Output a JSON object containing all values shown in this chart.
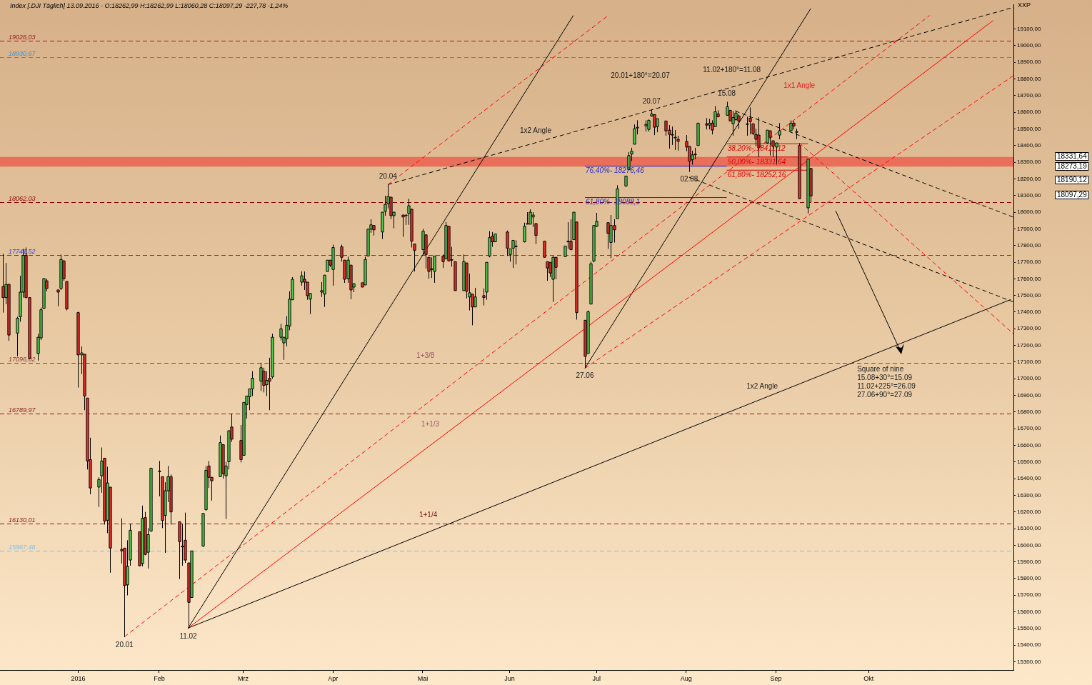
{
  "chart_data": {
    "type": "candlestick",
    "title": "Index [.DJI Täglich] 13.09.2016 - O:18262,99 H:18262,99 L:18060,28 C:18097,29 -227,78 -1,24%",
    "ylabel": "XXP",
    "xlim": [
      "2015-12-08",
      "2016-11-22"
    ],
    "xticks": [
      {
        "value": "2016-01-04",
        "label": "2016"
      },
      {
        "value": "2016-02-01",
        "label": "Feb"
      },
      {
        "value": "2016-03-01",
        "label": "Mrz"
      },
      {
        "value": "2016-04-01",
        "label": "Apr"
      },
      {
        "value": "2016-05-02",
        "label": "Mai"
      },
      {
        "value": "2016-06-01",
        "label": "Jun"
      },
      {
        "value": "2016-07-01",
        "label": "Jul"
      },
      {
        "value": "2016-08-01",
        "label": "Aug"
      },
      {
        "value": "2016-09-01",
        "label": "Sep"
      },
      {
        "value": "2016-10-03",
        "label": "Okt"
      }
    ],
    "ylim": [
      15250,
      19245
    ],
    "yticks": [
      {
        "value": 15300,
        "label": "15300,00"
      },
      {
        "value": 15400,
        "label": "15400,00"
      },
      {
        "value": 15500,
        "label": "15500,00"
      },
      {
        "value": 15600,
        "label": "15600,00"
      },
      {
        "value": 15700,
        "label": "15700,00"
      },
      {
        "value": 15800,
        "label": "15800,00"
      },
      {
        "value": 15900,
        "label": "15900,00"
      },
      {
        "value": 16000,
        "label": "16000,00"
      },
      {
        "value": 16100,
        "label": "16100,00"
      },
      {
        "value": 16200,
        "label": "16200,00"
      },
      {
        "value": 16300,
        "label": "16300,00"
      },
      {
        "value": 16400,
        "label": "16400,00"
      },
      {
        "value": 16500,
        "label": "16500,00"
      },
      {
        "value": 16600,
        "label": "16600,00"
      },
      {
        "value": 16700,
        "label": "16700,00"
      },
      {
        "value": 16800,
        "label": "16800,00"
      },
      {
        "value": 16900,
        "label": "16900,00"
      },
      {
        "value": 17000,
        "label": "17000,00"
      },
      {
        "value": 17100,
        "label": "17100,00"
      },
      {
        "value": 17200,
        "label": "17200,00"
      },
      {
        "value": 17300,
        "label": "17300,00"
      },
      {
        "value": 17400,
        "label": "17400,00"
      },
      {
        "value": 17500,
        "label": "17500,00"
      },
      {
        "value": 17600,
        "label": "17600,00"
      },
      {
        "value": 17700,
        "label": "17700,00"
      },
      {
        "value": 17800,
        "label": "17800,00"
      },
      {
        "value": 17900,
        "label": "17900,00"
      },
      {
        "value": 18000,
        "label": "18000,00"
      },
      {
        "value": 18100,
        "label": "18100,00"
      },
      {
        "value": 18200,
        "label": "18200,00"
      },
      {
        "value": 18300,
        "label": "18300,00"
      },
      {
        "value": 18400,
        "label": "18400,00"
      },
      {
        "value": 18500,
        "label": "18500,00"
      },
      {
        "value": 18600,
        "label": "18600,00"
      },
      {
        "value": 18700,
        "label": "18700,00"
      },
      {
        "value": 18800,
        "label": "18800,00"
      },
      {
        "value": 18900,
        "label": "18900,00"
      },
      {
        "value": 19000,
        "label": "19000,00"
      },
      {
        "value": 19100,
        "label": "19100,00"
      }
    ],
    "x": [
      "2015-12-09",
      "2015-12-10",
      "2015-12-11",
      "2015-12-14",
      "2015-12-15",
      "2015-12-16",
      "2015-12-17",
      "2015-12-18",
      "2015-12-21",
      "2015-12-22",
      "2015-12-23",
      "2015-12-24",
      "2015-12-28",
      "2015-12-29",
      "2015-12-30",
      "2015-12-31",
      "2016-01-04",
      "2016-01-05",
      "2016-01-06",
      "2016-01-07",
      "2016-01-08",
      "2016-01-11",
      "2016-01-12",
      "2016-01-13",
      "2016-01-14",
      "2016-01-15",
      "2016-01-19",
      "2016-01-20",
      "2016-01-21",
      "2016-01-22",
      "2016-01-25",
      "2016-01-26",
      "2016-01-27",
      "2016-01-28",
      "2016-01-29",
      "2016-02-01",
      "2016-02-02",
      "2016-02-03",
      "2016-02-04",
      "2016-02-05",
      "2016-02-08",
      "2016-02-09",
      "2016-02-10",
      "2016-02-11",
      "2016-02-12",
      "2016-02-16",
      "2016-02-17",
      "2016-02-18",
      "2016-02-19",
      "2016-02-22",
      "2016-02-23",
      "2016-02-24",
      "2016-02-25",
      "2016-02-26",
      "2016-02-29",
      "2016-03-01",
      "2016-03-02",
      "2016-03-03",
      "2016-03-04",
      "2016-03-07",
      "2016-03-08",
      "2016-03-09",
      "2016-03-10",
      "2016-03-11",
      "2016-03-14",
      "2016-03-15",
      "2016-03-16",
      "2016-03-17",
      "2016-03-18",
      "2016-03-21",
      "2016-03-22",
      "2016-03-23",
      "2016-03-24",
      "2016-03-28",
      "2016-03-29",
      "2016-03-30",
      "2016-03-31",
      "2016-04-01",
      "2016-04-04",
      "2016-04-05",
      "2016-04-06",
      "2016-04-07",
      "2016-04-08",
      "2016-04-11",
      "2016-04-12",
      "2016-04-13",
      "2016-04-14",
      "2016-04-15",
      "2016-04-18",
      "2016-04-19",
      "2016-04-20",
      "2016-04-21",
      "2016-04-22",
      "2016-04-25",
      "2016-04-26",
      "2016-04-27",
      "2016-04-28",
      "2016-04-29",
      "2016-05-02",
      "2016-05-03",
      "2016-05-04",
      "2016-05-05",
      "2016-05-06",
      "2016-05-09",
      "2016-05-10",
      "2016-05-11",
      "2016-05-12",
      "2016-05-13",
      "2016-05-16",
      "2016-05-17",
      "2016-05-18",
      "2016-05-19",
      "2016-05-20",
      "2016-05-23",
      "2016-05-24",
      "2016-05-25",
      "2016-05-26",
      "2016-05-27",
      "2016-05-31",
      "2016-06-01",
      "2016-06-02",
      "2016-06-03",
      "2016-06-06",
      "2016-06-07",
      "2016-06-08",
      "2016-06-09",
      "2016-06-10",
      "2016-06-13",
      "2016-06-14",
      "2016-06-15",
      "2016-06-16",
      "2016-06-17",
      "2016-06-20",
      "2016-06-21",
      "2016-06-22",
      "2016-06-23",
      "2016-06-24",
      "2016-06-27",
      "2016-06-28",
      "2016-06-29",
      "2016-06-30",
      "2016-07-01",
      "2016-07-05",
      "2016-07-06",
      "2016-07-07",
      "2016-07-08",
      "2016-07-11",
      "2016-07-12",
      "2016-07-13",
      "2016-07-14",
      "2016-07-15",
      "2016-07-18",
      "2016-07-19",
      "2016-07-20",
      "2016-07-21",
      "2016-07-22",
      "2016-07-25",
      "2016-07-26",
      "2016-07-27",
      "2016-07-28",
      "2016-07-29",
      "2016-08-01",
      "2016-08-02",
      "2016-08-03",
      "2016-08-04",
      "2016-08-05",
      "2016-08-08",
      "2016-08-09",
      "2016-08-10",
      "2016-08-11",
      "2016-08-12",
      "2016-08-15",
      "2016-08-16",
      "2016-08-17",
      "2016-08-18",
      "2016-08-19",
      "2016-08-22",
      "2016-08-23",
      "2016-08-24",
      "2016-08-25",
      "2016-08-26",
      "2016-08-29",
      "2016-08-30",
      "2016-08-31",
      "2016-09-01",
      "2016-09-02",
      "2016-09-06",
      "2016-09-07",
      "2016-09-08",
      "2016-09-09",
      "2016-09-12",
      "2016-09-13"
    ],
    "ohlc": [
      [
        17554,
        17750,
        17397,
        17487
      ],
      [
        17487,
        17695,
        17448,
        17567
      ],
      [
        17567,
        17567,
        17227,
        17262
      ],
      [
        17274,
        17372,
        17134,
        17363
      ],
      [
        17372,
        17618,
        17342,
        17520
      ],
      [
        17520,
        17780,
        17487,
        17741
      ],
      [
        17741,
        17788,
        17483,
        17487
      ],
      [
        17487,
        17487,
        17117,
        17121
      ],
      [
        17151,
        17270,
        17109,
        17249
      ],
      [
        17245,
        17427,
        17232,
        17414
      ],
      [
        17423,
        17605,
        17419,
        17601
      ],
      [
        17588,
        17601,
        17525,
        17542
      ],
      [
        17533,
        17533,
        17435,
        17520
      ],
      [
        17542,
        17745,
        17533,
        17716
      ],
      [
        17707,
        17712,
        17588,
        17601
      ],
      [
        17584,
        17584,
        17410,
        17419
      ],
      [
        17397,
        17402,
        16947,
        17143
      ],
      [
        17143,
        17194,
        17028,
        17155
      ],
      [
        17147,
        17147,
        16811,
        16896
      ],
      [
        16884,
        16884,
        16455,
        16506
      ],
      [
        16514,
        16646,
        16306,
        16344
      ],
      [
        16349,
        16408,
        16230,
        16395
      ],
      [
        16417,
        16587,
        16315,
        16506
      ],
      [
        16523,
        16523,
        16124,
        16145
      ],
      [
        16150,
        16472,
        16073,
        16374
      ],
      [
        16349,
        16349,
        15835,
        15983
      ],
      [
        15975,
        16162,
        15890,
        15966
      ],
      [
        15983,
        15983,
        15448,
        15758
      ],
      [
        15762,
        16030,
        15699,
        15873
      ],
      [
        15911,
        16128,
        15877,
        16090
      ],
      [
        16081,
        16081,
        15873,
        15877
      ],
      [
        15890,
        16238,
        15873,
        16162
      ],
      [
        16166,
        16200,
        15940,
        15945
      ],
      [
        15958,
        16103,
        15860,
        16064
      ],
      [
        16085,
        16463,
        16081,
        16463
      ],
      [
        16446,
        16506,
        16294,
        16446
      ],
      [
        16412,
        16412,
        16103,
        16149
      ],
      [
        16179,
        16378,
        15954,
        16327
      ],
      [
        16327,
        16476,
        16259,
        16412
      ],
      [
        16412,
        16425,
        16124,
        16200
      ],
      [
        16141,
        16141,
        15797,
        16022
      ],
      [
        15995,
        16128,
        15877,
        15990
      ],
      [
        16030,
        16196,
        15894,
        15911
      ],
      [
        15894,
        15894,
        15499,
        15657
      ],
      [
        15686,
        15966,
        15686,
        15966
      ],
      [
        15995,
        16191,
        15990,
        16191
      ],
      [
        16213,
        16476,
        16208,
        16450
      ],
      [
        16476,
        16506,
        16344,
        16408
      ],
      [
        16408,
        16408,
        16268,
        16387
      ],
      [
        16412,
        16659,
        16412,
        16616
      ],
      [
        16604,
        16604,
        16400,
        16429
      ],
      [
        16417,
        16501,
        16158,
        16476
      ],
      [
        16501,
        16688,
        16455,
        16688
      ],
      [
        16710,
        16790,
        16620,
        16637
      ],
      [
        16629,
        16722,
        16497,
        16514
      ],
      [
        16540,
        16858,
        16540,
        16858
      ],
      [
        16845,
        16896,
        16760,
        16896
      ],
      [
        16892,
        16939,
        16811,
        16939
      ],
      [
        16939,
        17045,
        16896,
        17003
      ],
      [
        16985,
        17096,
        16926,
        17066
      ],
      [
        17045,
        17066,
        16918,
        16960
      ],
      [
        16964,
        17045,
        16896,
        16990
      ],
      [
        17003,
        17126,
        16811,
        16985
      ],
      [
        17011,
        17270,
        17000,
        17249
      ],
      [
        17249,
        17330,
        17230,
        17300
      ],
      [
        17215,
        17249,
        17113,
        17249
      ],
      [
        17240,
        17376,
        17194,
        17321
      ],
      [
        17317,
        17525,
        17291,
        17478
      ],
      [
        17474,
        17610,
        17474,
        17597
      ],
      [
        17580,
        17644,
        17559,
        17618
      ],
      [
        17597,
        17644,
        17533,
        17580
      ],
      [
        17580,
        17580,
        17474,
        17499
      ],
      [
        17478,
        17512,
        17389,
        17512
      ],
      [
        17520,
        17580,
        17491,
        17529
      ],
      [
        17508,
        17622,
        17431,
        17622
      ],
      [
        17644,
        17712,
        17644,
        17712
      ],
      [
        17712,
        17712,
        17670,
        17682
      ],
      [
        17656,
        17805,
        17559,
        17788
      ],
      [
        17792,
        17805,
        17703,
        17729
      ],
      [
        17712,
        17712,
        17576,
        17597
      ],
      [
        17601,
        17733,
        17576,
        17712
      ],
      [
        17682,
        17682,
        17478,
        17533
      ],
      [
        17550,
        17571,
        17520,
        17571
      ],
      [
        17576,
        17576,
        17550,
        17550
      ],
      [
        17563,
        17733,
        17563,
        17716
      ],
      [
        17737,
        17898,
        17737,
        17898
      ],
      [
        17898,
        17958,
        17877,
        17924
      ],
      [
        17920,
        17920,
        17860,
        17894
      ],
      [
        17881,
        18000,
        17839,
        18000
      ],
      [
        18005,
        18098,
        17979,
        18047
      ],
      [
        18051,
        18166,
        18022,
        18094
      ],
      [
        18090,
        18090,
        17958,
        17979
      ],
      [
        17979,
        18000,
        17903,
        18000
      ],
      [
        17983,
        17983,
        17852,
        17971
      ],
      [
        17983,
        17983,
        17924,
        17983
      ],
      [
        17992,
        18081,
        17924,
        18039
      ],
      [
        18018,
        18018,
        17788,
        17826
      ],
      [
        17809,
        17809,
        17644,
        17771
      ],
      [
        17775,
        17900,
        17740,
        17886
      ],
      [
        17864,
        17864,
        17661,
        17746
      ],
      [
        17729,
        17729,
        17601,
        17644
      ],
      [
        17660,
        17729,
        17605,
        17656
      ],
      [
        17644,
        17737,
        17576,
        17737
      ],
      [
        17737,
        17746,
        17665,
        17703
      ],
      [
        17720,
        17941,
        17720,
        17920
      ],
      [
        17915,
        17915,
        17707,
        17707
      ],
      [
        17716,
        17792,
        17673,
        17716
      ],
      [
        17703,
        17703,
        17529,
        17529
      ],
      [
        17529,
        17746,
        17529,
        17703
      ],
      [
        17695,
        17695,
        17482,
        17525
      ],
      [
        17491,
        17631,
        17410,
        17516
      ],
      [
        17508,
        17508,
        17321,
        17431
      ],
      [
        17431,
        17546,
        17431,
        17491
      ],
      [
        17499,
        17542,
        17440,
        17487
      ],
      [
        17520,
        17699,
        17474,
        17699
      ],
      [
        17737,
        17886,
        17729,
        17847
      ],
      [
        17856,
        17881,
        17792,
        17822
      ],
      [
        17822,
        17869,
        17822,
        17869
      ],
      [
        17881,
        17890,
        17737,
        17784
      ],
      [
        17746,
        17780,
        17703,
        17780
      ],
      [
        17784,
        17831,
        17665,
        17831
      ],
      [
        17797,
        17831,
        17686,
        17797
      ],
      [
        17822,
        17937,
        17818,
        17915
      ],
      [
        17932,
        18000,
        17932,
        17932
      ],
      [
        17928,
        18018,
        17928,
        18000
      ],
      [
        17971,
        18000,
        17911,
        17983
      ],
      [
        17932,
        17932,
        17809,
        17860
      ],
      [
        17826,
        17826,
        17729,
        17729
      ],
      [
        17703,
        17703,
        17588,
        17665
      ],
      [
        17699,
        17699,
        17610,
        17635
      ],
      [
        17597,
        17737,
        17461,
        17729
      ],
      [
        17729,
        17729,
        17597,
        17669
      ],
      [
        17733,
        17796,
        17733,
        17796
      ],
      [
        17826,
        17940,
        17780,
        17826
      ],
      [
        17826,
        17958,
        17771,
        17775
      ],
      [
        17835,
        18000,
        17835,
        18000
      ],
      [
        17941,
        17941,
        17355,
        17397
      ],
      [
        17351,
        17351,
        17066,
        17134
      ],
      [
        17151,
        17410,
        17151,
        17402
      ],
      [
        17448,
        17703,
        17448,
        17690
      ],
      [
        17707,
        17920,
        17699,
        17920
      ],
      [
        17915,
        17996,
        17911,
        17945
      ],
      [
        17937,
        17937,
        17780,
        17873
      ],
      [
        17818,
        17983,
        17724,
        17920
      ],
      [
        17920,
        17958,
        17818,
        17894
      ],
      [
        17962,
        18162,
        17962,
        18140
      ],
      [
        18157,
        18217,
        18153,
        18217
      ],
      [
        18255,
        18361,
        18255,
        18340
      ],
      [
        18349,
        18387,
        18306,
        18366
      ],
      [
        18408,
        18527,
        18408,
        18501
      ],
      [
        18510,
        18552,
        18467,
        18510
      ],
      [
        18518,
        18552,
        18484,
        18527
      ],
      [
        18497,
        18556,
        18484,
        18552
      ],
      [
        18578,
        18616,
        18573,
        18590
      ],
      [
        18586,
        18586,
        18463,
        18510
      ],
      [
        18514,
        18561,
        18480,
        18561
      ],
      [
        18548,
        18548,
        18459,
        18488
      ],
      [
        18493,
        18523,
        18382,
        18467
      ],
      [
        18467,
        18514,
        18404,
        18467
      ],
      [
        18450,
        18493,
        18374,
        18450
      ],
      [
        18438,
        18459,
        18370,
        18425
      ],
      [
        18425,
        18463,
        18366,
        18391
      ],
      [
        18395,
        18395,
        18242,
        18306
      ],
      [
        18315,
        18370,
        18285,
        18344
      ],
      [
        18349,
        18387,
        18319,
        18349
      ],
      [
        18400,
        18535,
        18400,
        18535
      ],
      [
        18531,
        18565,
        18497,
        18523
      ],
      [
        18523,
        18561,
        18497,
        18535
      ],
      [
        18535,
        18552,
        18467,
        18493
      ],
      [
        18514,
        18637,
        18514,
        18603
      ],
      [
        18590,
        18612,
        18569,
        18573
      ],
      [
        18582,
        18663,
        18582,
        18633
      ],
      [
        18612,
        18612,
        18548,
        18548
      ],
      [
        18531,
        18607,
        18459,
        18569
      ],
      [
        18556,
        18612,
        18548,
        18595
      ],
      [
        18578,
        18586,
        18501,
        18548
      ],
      [
        18531,
        18573,
        18459,
        18531
      ],
      [
        18565,
        18629,
        18467,
        18544
      ],
      [
        18531,
        18531,
        18463,
        18472
      ],
      [
        18467,
        18501,
        18395,
        18438
      ],
      [
        18463,
        18569,
        18332,
        18387
      ],
      [
        18416,
        18493,
        18412,
        18493
      ],
      [
        18489,
        18489,
        18340,
        18450
      ],
      [
        18429,
        18429,
        18332,
        18395
      ],
      [
        18391,
        18416,
        18285,
        18416
      ],
      [
        18463,
        18535,
        18438,
        18489
      ],
      [
        18489,
        18552,
        18489,
        18535
      ],
      [
        18535,
        18548,
        18497,
        18518
      ],
      [
        18484,
        18501,
        18438,
        18484
      ],
      [
        18400,
        18412,
        18081,
        18081
      ],
      [
        18026,
        18319,
        17992,
        18319
      ],
      [
        18262.99,
        18262.99,
        18060.28,
        18097.29
      ]
    ],
    "series": [
      {
        "type": "line",
        "color": "#000000",
        "x": [
          "2016-02-11",
          "2016-06-23"
        ],
        "values": [
          15503,
          19181
        ]
      },
      {
        "type": "line",
        "color": "#ff0000",
        "x": [
          "2016-02-11",
          "2016-11-15"
        ],
        "values": [
          15503,
          19151
        ]
      },
      {
        "type": "line",
        "color": "#000000",
        "x": [
          "2016-02-11",
          "2016-11-21"
        ],
        "values": [
          15503,
          17475
        ]
      },
      {
        "type": "line",
        "color": "#000000",
        "x": [
          "2016-06-27",
          "2016-09-13"
        ],
        "values": [
          17063,
          19223
        ]
      },
      {
        "type": "line",
        "color": "#ff0000",
        "line_style": "dashed",
        "x": [
          "2016-01-20",
          "2016-10-24"
        ],
        "values": [
          15451,
          19181
        ]
      },
      {
        "type": "line",
        "color": "#ff0000",
        "line_style": "dashed",
        "x": [
          "2016-04-20",
          "2016-07-05"
        ],
        "values": [
          18166,
          19181
        ]
      },
      {
        "type": "line",
        "color": "#ff0000",
        "line_style": "dashed",
        "x": [
          "2016-06-27",
          "2016-11-22"
        ],
        "values": [
          17063,
          18820
        ]
      },
      {
        "type": "line",
        "color": "#ff0000",
        "line_style": "dashed",
        "x": [
          "2016-09-09",
          "2016-11-22"
        ],
        "values": [
          18416,
          17270
        ]
      },
      {
        "type": "line",
        "color": "#000000",
        "line_style": "dashed",
        "x": [
          "2016-04-20",
          "2016-11-22"
        ],
        "values": [
          18166,
          19230
        ]
      },
      {
        "type": "line",
        "color": "#000000",
        "line_style": "dashed",
        "x": [
          "2016-08-18",
          "2016-11-22"
        ],
        "values": [
          18607,
          17970
        ]
      },
      {
        "type": "line",
        "color": "#000000",
        "line_style": "dashed",
        "x": [
          "2016-08-02",
          "2016-11-22"
        ],
        "values": [
          18210,
          17461
        ]
      },
      {
        "type": "line",
        "name": "76,40%- 18276,46",
        "color": "#2a2ad0",
        "x": [
          "2016-06-27",
          "2016-08-15"
        ],
        "values": [
          18276.46,
          18276.46
        ]
      },
      {
        "type": "line",
        "name": "61,80%- 18088,1",
        "color": "#2a2ad0",
        "x": [
          "2016-06-27",
          "2016-08-15"
        ],
        "values": [
          18088.1,
          18088.1
        ]
      },
      {
        "type": "line",
        "name": "38,20%- 18411,12",
        "color": "#e00000",
        "x": [
          "2016-08-15",
          "2016-09-12"
        ],
        "values": [
          18411.12,
          18411.12
        ]
      },
      {
        "type": "line",
        "name": "50,00%- 18331,64",
        "color": "#e00000",
        "x": [
          "2016-08-15",
          "2016-09-12"
        ],
        "values": [
          18331.64,
          18331.64
        ]
      },
      {
        "type": "line",
        "name": "61,80%- 18252,16",
        "color": "#e00000",
        "x": [
          "2016-08-15",
          "2016-09-12"
        ],
        "values": [
          18252.16,
          18252.16
        ]
      }
    ],
    "ref_lines": [
      {
        "axis": "y",
        "value": 19028.03,
        "label": "19028,03",
        "color": "#9b1c1c",
        "line_style": "dashed"
      },
      {
        "axis": "y",
        "value": 18930.67,
        "label": "18930,67",
        "color": "#3a8ee6",
        "line_style": "dashed"
      },
      {
        "axis": "y",
        "value": 18062.03,
        "label": "18062,03",
        "color": "#8b0000",
        "line_style": "dashed"
      },
      {
        "axis": "y",
        "value": 17741.52,
        "label": "17741,52",
        "color": "#1f3cff",
        "line_style": "dashed"
      },
      {
        "axis": "y",
        "value": 17096.02,
        "label": "17096,02",
        "color": "#8b3a3a",
        "line_style": "dashed"
      },
      {
        "axis": "y",
        "value": 16789.97,
        "label": "16789,97",
        "color": "#8b1a1a",
        "line_style": "dashed"
      },
      {
        "axis": "y",
        "value": 16130.01,
        "label": "16130,01",
        "color": "#8b1a1a",
        "line_style": "dashed"
      },
      {
        "axis": "y",
        "value": 15967.48,
        "label": "15967,48",
        "color": "#7fbfe8",
        "line_style": "dashed"
      }
    ],
    "bands": [
      {
        "axis": "y",
        "from": 18273.19,
        "to": 18331.64,
        "color": "#ea6f5a"
      }
    ],
    "annotations": [
      {
        "text": "20.01",
        "x": "2016-01-20",
        "y": 15448
      },
      {
        "text": "11.02",
        "x": "2016-02-11",
        "y": 15499
      },
      {
        "text": "20.04",
        "x": "2016-04-20",
        "y": 18166
      },
      {
        "text": "20.07",
        "x": "2016-07-20",
        "y": 18616
      },
      {
        "text": "15.08",
        "x": "2016-08-15",
        "y": 18663
      },
      {
        "text": "02.08",
        "x": "2016-08-02",
        "y": 18242
      },
      {
        "text": "27.06",
        "x": "2016-06-27",
        "y": 17066
      },
      "1x1 Angle",
      "1x2 Angle",
      "1x2 Angle",
      "1+3/8",
      "1+1/3",
      "1+1/4",
      "20.01+180°=20.07",
      "11.02+180°=11.08",
      "Square of nine",
      "15.08+30°=15.09",
      "11.02+225°=26.09",
      "27.06+90°=27.09",
      "18331,64",
      "18273,19",
      "18190,12",
      "18097,29"
    ]
  }
}
